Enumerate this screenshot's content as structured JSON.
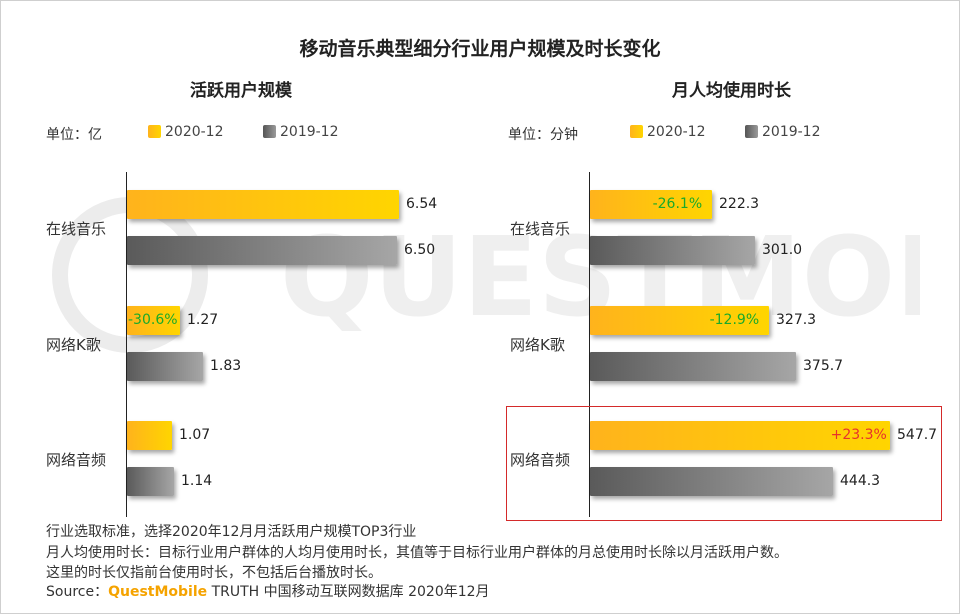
{
  "title": "移动音乐典型细分行业用户规模及时长变化",
  "legend": {
    "series_a": "2020-12",
    "series_b": "2019-12"
  },
  "colors": {
    "series_2020": "#ffc21a",
    "series_2019": "#7a7a7a",
    "increase": "#e8322b",
    "decrease": "#1aaa2a",
    "highlight_border": "#d42a2a"
  },
  "watermark": "QUESTMOBILE",
  "chart_data": [
    {
      "type": "bar",
      "orientation": "horizontal",
      "title": "活跃用户规模",
      "unit_label": "单位：亿",
      "categories": [
        "在线音乐",
        "网络K歌",
        "网络音频"
      ],
      "series": [
        {
          "name": "2020-12",
          "values": [
            6.54,
            1.27,
            1.07
          ]
        },
        {
          "name": "2019-12",
          "values": [
            6.5,
            1.83,
            1.14
          ]
        }
      ],
      "value_labels": {
        "2020-12": [
          "6.54",
          "1.27",
          "1.07"
        ],
        "2019-12": [
          "6.50",
          "1.83",
          "1.14"
        ]
      },
      "changes": [
        "",
        "-30.6%",
        ""
      ],
      "xlim": [
        0,
        6.54
      ],
      "grid": false,
      "legend_position": "top"
    },
    {
      "type": "bar",
      "orientation": "horizontal",
      "title": "月人均使用时长",
      "unit_label": "单位：分钟",
      "categories": [
        "在线音乐",
        "网络K歌",
        "网络音频"
      ],
      "series": [
        {
          "name": "2020-12",
          "values": [
            222.3,
            327.3,
            547.7
          ]
        },
        {
          "name": "2019-12",
          "values": [
            301.0,
            375.7,
            444.3
          ]
        }
      ],
      "value_labels": {
        "2020-12": [
          "222.3",
          "327.3",
          "547.7"
        ],
        "2019-12": [
          "301.0",
          "375.7",
          "444.3"
        ]
      },
      "changes": [
        "-26.1%",
        "-12.9%",
        "+23.3%"
      ],
      "highlighted_category": "网络音频",
      "xlim": [
        0,
        547.7
      ],
      "grid": false,
      "legend_position": "top"
    }
  ],
  "notes": [
    "行业选取标准，选择2020年12月月活跃用户规模TOP3行业",
    "月人均使用时长：目标行业用户群体的人均月使用时长，其值等于目标行业用户群体的月总使用时长除以月活跃用户数。",
    "这里的时长仅指前台使用时长，不包括后台播放时长。"
  ],
  "source": {
    "prefix": "Source：",
    "brand": "QuestMobile",
    "rest": " TRUTH 中国移动互联网数据库 2020年12月"
  }
}
